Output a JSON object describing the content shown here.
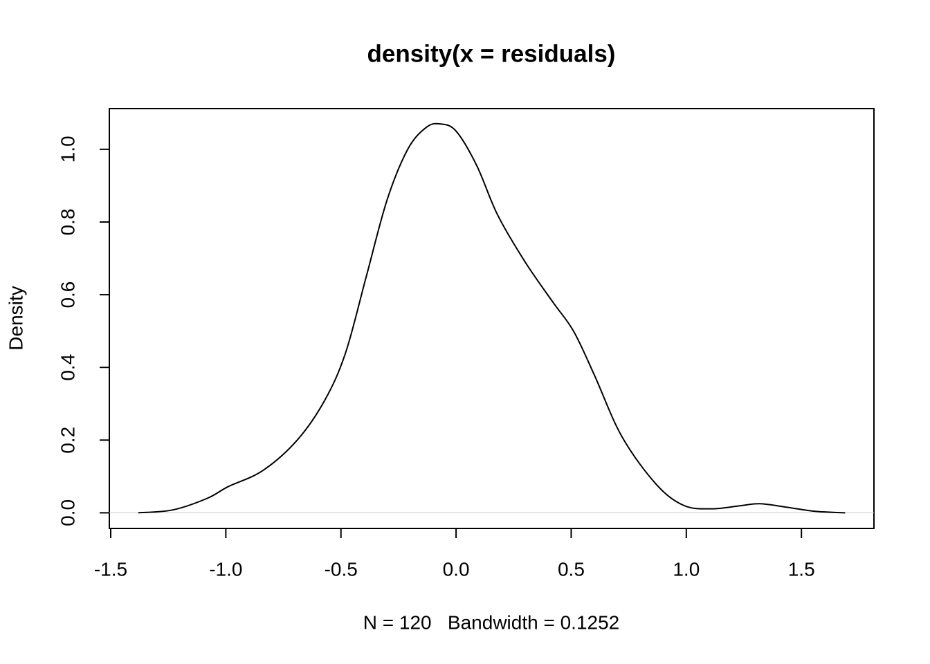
{
  "chart_data": {
    "type": "line",
    "title": "density(x = residuals)",
    "xlabel": "N = 120   Bandwidth = 0.1252",
    "ylabel": "Density",
    "color": "#000000",
    "x": [
      -1.38,
      -1.23,
      -1.08,
      -0.99,
      -0.84,
      -0.69,
      -0.57,
      -0.48,
      -0.39,
      -0.3,
      -0.21,
      -0.13,
      -0.07,
      0.0,
      0.09,
      0.18,
      0.3,
      0.42,
      0.51,
      0.6,
      0.72,
      0.87,
      0.99,
      1.11,
      1.23,
      1.32,
      1.44,
      1.56,
      1.69
    ],
    "values": [
      0.0,
      0.008,
      0.04,
      0.072,
      0.116,
      0.2,
      0.31,
      0.44,
      0.65,
      0.86,
      1.0,
      1.06,
      1.07,
      1.05,
      0.955,
      0.82,
      0.69,
      0.58,
      0.5,
      0.38,
      0.21,
      0.078,
      0.02,
      0.011,
      0.019,
      0.025,
      0.015,
      0.004,
      0.0
    ],
    "xlim": [
      -1.506,
      1.815
    ],
    "ylim": [
      -0.043,
      1.112
    ],
    "xticks": [
      -1.5,
      {
        "value": -1.0,
        "label": "-1.0"
      },
      -0.5,
      {
        "value": 0.0,
        "label": "0.0"
      },
      0.5,
      {
        "value": 1.0,
        "label": "1.0"
      },
      1.5
    ],
    "yticks": [
      {
        "value": 0.0,
        "label": "0.0"
      },
      0.2,
      0.4,
      0.6,
      0.8,
      {
        "value": 1.0,
        "label": "1.0"
      }
    ],
    "zero_line": true
  }
}
